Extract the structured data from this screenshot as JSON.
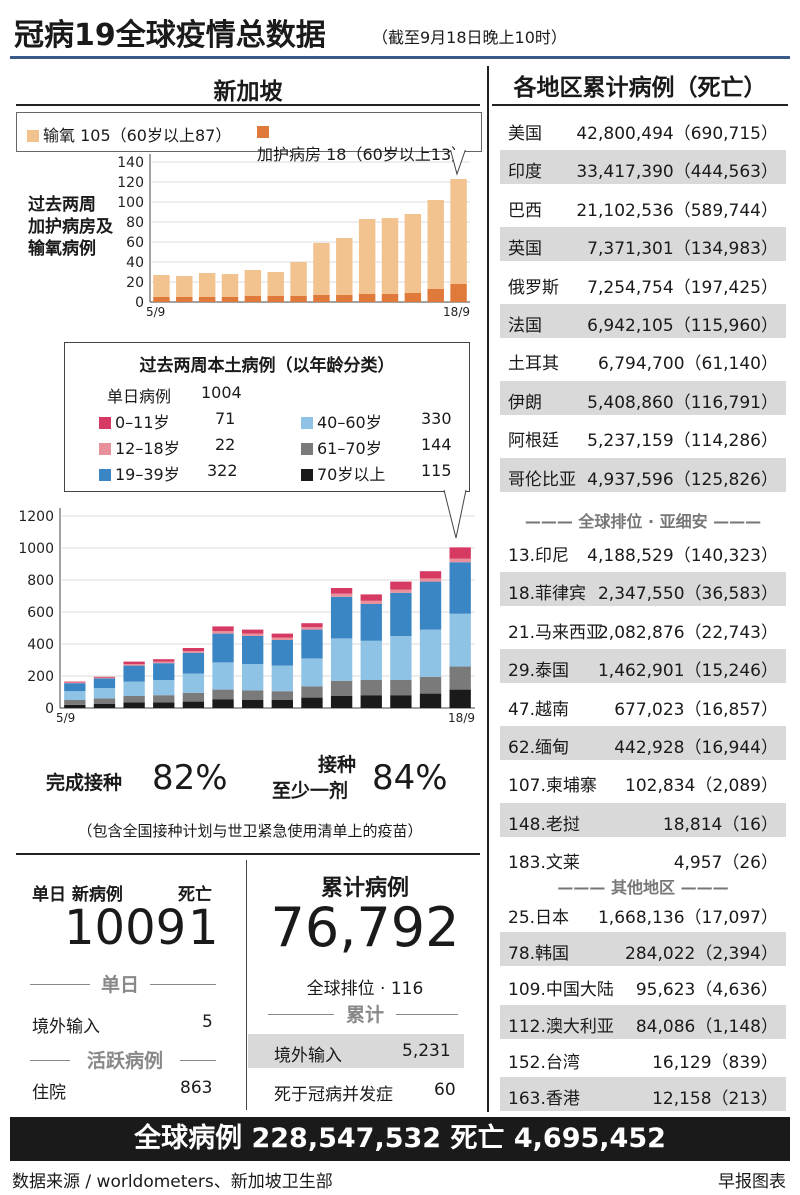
{
  "title": {
    "main": "冠病19全球疫情总数据",
    "sub": "（截至9月18日晚上10时）"
  },
  "left_header": "新加坡",
  "right_header": "各地区累计病例（死亡）",
  "colors": {
    "oxygen": "#f2c38f",
    "icu": "#e07a3a",
    "age_0_11": "#d63a62",
    "age_12_18": "#e8909b",
    "age_19_39": "#3a86c4",
    "age_40_60": "#8fc3e6",
    "age_61_70": "#7a7a7a",
    "age_70plus": "#1a1a1a",
    "row_shade": "#d9d9d9",
    "title_rule": "#3a5a8a"
  },
  "legend_top": {
    "oxygen": "输氧 105（60岁以上87）",
    "icu": "加护病房 18（60岁以上13）"
  },
  "chart1_label": [
    "过去两周",
    "加护病房及",
    "输氧病例"
  ],
  "inset": {
    "title": "过去两周本土病例（以年龄分类）",
    "daily_label": "单日病例",
    "daily_value": "1004",
    "groups": [
      {
        "label": "0–11岁",
        "value": "71"
      },
      {
        "label": "12–18岁",
        "value": "22"
      },
      {
        "label": "19–39岁",
        "value": "322"
      },
      {
        "label": "40–60岁",
        "value": "330"
      },
      {
        "label": "61–70岁",
        "value": "144"
      },
      {
        "label": "70岁以上",
        "value": "115"
      }
    ]
  },
  "chart_data": [
    {
      "type": "bar",
      "x_start_label": "5/9",
      "x_end_label": "18/9",
      "yticks": [
        "140",
        "120",
        "100",
        "80",
        "60",
        "40",
        "20",
        "0"
      ],
      "ylim": [
        0,
        140
      ],
      "series": [
        {
          "name": "加护病房",
          "values": [
            5,
            5,
            5,
            5,
            6,
            6,
            6,
            7,
            7,
            8,
            8,
            9,
            13,
            18
          ]
        },
        {
          "name": "输氧",
          "values": [
            22,
            21,
            24,
            23,
            26,
            24,
            34,
            52,
            57,
            75,
            76,
            79,
            89,
            105
          ]
        }
      ]
    },
    {
      "type": "bar",
      "x_start_label": "5/9",
      "x_end_label": "18/9",
      "yticks": [
        "1200",
        "1000",
        "800",
        "600",
        "400",
        "200",
        "0"
      ],
      "ylim": [
        0,
        1200
      ],
      "series": [
        {
          "name": "70岁以上",
          "values": [
            20,
            25,
            35,
            35,
            40,
            55,
            50,
            50,
            65,
            75,
            80,
            80,
            90,
            115
          ]
        },
        {
          "name": "61–70岁",
          "values": [
            30,
            35,
            40,
            45,
            55,
            60,
            60,
            55,
            70,
            95,
            95,
            95,
            105,
            144
          ]
        },
        {
          "name": "40–60岁",
          "values": [
            55,
            65,
            90,
            95,
            120,
            170,
            165,
            160,
            175,
            265,
            245,
            275,
            295,
            330
          ]
        },
        {
          "name": "19–39岁",
          "values": [
            50,
            60,
            100,
            105,
            130,
            180,
            175,
            160,
            180,
            260,
            230,
            270,
            300,
            322
          ]
        },
        {
          "name": "12–18岁",
          "values": [
            5,
            5,
            10,
            10,
            10,
            15,
            15,
            15,
            15,
            20,
            20,
            20,
            20,
            22
          ]
        },
        {
          "name": "0–11岁",
          "values": [
            5,
            5,
            15,
            15,
            20,
            30,
            25,
            25,
            25,
            35,
            40,
            50,
            45,
            71
          ]
        }
      ]
    }
  ],
  "vaccination": {
    "full_label": "完成接种",
    "full_value": "82%",
    "one_label_1": "接种",
    "one_label_2": "至少一剂",
    "one_value": "84%",
    "note": "（包含全国接种计划与世卫紧急使用清单上的疫苗）"
  },
  "daily": {
    "new_label": "单日  新病例",
    "death_label": "死亡",
    "new_value": "1009",
    "death_value": "1",
    "section_label": "单日",
    "imported_label": "境外输入",
    "imported_value": "5",
    "active_label": "活跃病例",
    "hosp_label": "住院",
    "hosp_value": "863"
  },
  "cumulative": {
    "label": "累计病例",
    "value": "76,792",
    "rank": "全球排位 · 116",
    "section_label": "累计",
    "imported_label": "境外输入",
    "imported_value": "5,231",
    "deaths_label": "死于冠病并发症",
    "deaths_value": "60"
  },
  "top_countries": [
    {
      "name": "美国",
      "value": "42,800,494（690,715）"
    },
    {
      "name": "印度",
      "value": "33,417,390（444,563）"
    },
    {
      "name": "巴西",
      "value": "21,102,536（589,744）"
    },
    {
      "name": "英国",
      "value": "7,371,301（134,983）"
    },
    {
      "name": "俄罗斯",
      "value": "7,254,754（197,425）"
    },
    {
      "name": "法国",
      "value": "6,942,105（115,960）"
    },
    {
      "name": "土耳其",
      "value": "6,794,700（61,140）"
    },
    {
      "name": "伊朗",
      "value": "5,408,860（116,791）"
    },
    {
      "name": "阿根廷",
      "value": "5,237,159（114,286）"
    },
    {
      "name": "哥伦比亚",
      "value": "4,937,596（125,826）"
    }
  ],
  "asean_header": "全球排位 · 亚细安",
  "asean": [
    {
      "name": "13.印尼",
      "value": "4,188,529（140,323）"
    },
    {
      "name": "18.菲律宾",
      "value": "2,347,550（36,583）"
    },
    {
      "name": "21.马来西亚",
      "value": "2,082,876（22,743）"
    },
    {
      "name": "29.泰国",
      "value": "1,462,901（15,246）"
    },
    {
      "name": "47.越南",
      "value": "677,023（16,857）"
    },
    {
      "name": "62.缅甸",
      "value": "442,928（16,944）"
    },
    {
      "name": "107.柬埔寨",
      "value": "102,834（2,089）"
    },
    {
      "name": "148.老挝",
      "value": "18,814（16）"
    },
    {
      "name": "183.文莱",
      "value": "4,957（26）"
    }
  ],
  "other_header": "其他地区",
  "other": [
    {
      "name": "25.日本",
      "value": "1,668,136（17,097）"
    },
    {
      "name": "78.韩国",
      "value": "284,022（2,394）"
    },
    {
      "name": "109.中国大陆",
      "value": "95,623（4,636）"
    },
    {
      "name": "112.澳大利亚",
      "value": "84,086（1,148）"
    },
    {
      "name": "152.台湾",
      "value": "16,129（839）"
    },
    {
      "name": "163.香港",
      "value": "12,158（213）"
    }
  ],
  "footer": "全球病例 228,547,532   死亡 4,695,452",
  "source": "数据来源 / worldometers、新加坡卫生部",
  "credit": "早报图表"
}
